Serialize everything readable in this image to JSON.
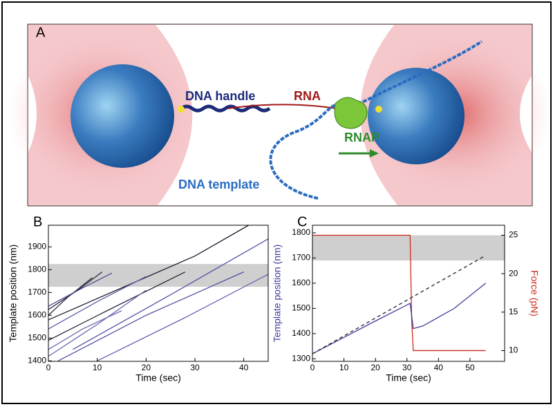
{
  "figure": {
    "panel_a": {
      "label": "A",
      "texts": [
        "DNA handle",
        "RNA",
        "RNAP",
        "DNA template"
      ]
    }
  },
  "chart_data": [
    {
      "type": "line",
      "label": "B",
      "xlabel": "Time (sec)",
      "ylabel": "Template position (nm)",
      "xlim": [
        0,
        45
      ],
      "ylim": [
        1398,
        1995
      ],
      "xticks": [
        0,
        10,
        20,
        30,
        40
      ],
      "yticks": [
        1400,
        1500,
        1600,
        1700,
        1800,
        1900
      ],
      "band": [
        1725,
        1825
      ],
      "series": [
        {
          "color": "#2a2a40",
          "x": [
            0,
            4,
            9
          ],
          "values": [
            1600,
            1680,
            1765
          ]
        },
        {
          "color": "#2a2a40",
          "x": [
            0,
            6,
            11
          ],
          "values": [
            1625,
            1710,
            1790
          ]
        },
        {
          "color": "#4a4a90",
          "x": [
            0,
            7,
            13
          ],
          "values": [
            1640,
            1720,
            1785
          ]
        },
        {
          "color": "#1a1a2a",
          "x": [
            0,
            15,
            30,
            41
          ],
          "values": [
            1580,
            1720,
            1860,
            1995
          ]
        },
        {
          "color": "#2a2a40",
          "x": [
            0,
            12,
            28
          ],
          "values": [
            1490,
            1620,
            1790
          ]
        },
        {
          "color": "#6a6ab0",
          "x": [
            0,
            7,
            15
          ],
          "values": [
            1450,
            1540,
            1620
          ]
        },
        {
          "color": "#5a5aa8",
          "x": [
            0,
            10,
            20
          ],
          "values": [
            1540,
            1660,
            1770
          ]
        },
        {
          "color": "#6a6ab0",
          "x": [
            0,
            10,
            20
          ],
          "values": [
            1420,
            1560,
            1710
          ]
        },
        {
          "color": "#5050a0",
          "x": [
            2,
            20,
            40
          ],
          "values": [
            1400,
            1600,
            1790
          ]
        },
        {
          "color": "#6060b0",
          "x": [
            10,
            28,
            45
          ],
          "values": [
            1400,
            1590,
            1780
          ]
        },
        {
          "color": "#5050a8",
          "x": [
            5,
            25,
            45
          ],
          "values": [
            1450,
            1690,
            1935
          ]
        }
      ]
    },
    {
      "type": "line",
      "label": "C",
      "xlabel": "Time (sec)",
      "ylabel": "Template position (nm)",
      "y2label": "Force (pN)",
      "xlim": [
        0,
        61
      ],
      "ylim": [
        1290,
        1830
      ],
      "xticks": [
        0,
        10,
        20,
        30,
        40,
        50
      ],
      "yticks": [
        1300,
        1400,
        1500,
        1600,
        1700,
        1800
      ],
      "y2lim": [
        8.6,
        26.3
      ],
      "y2ticks": [
        10,
        15,
        20,
        25
      ],
      "band": [
        1690,
        1790
      ],
      "series": [
        {
          "color": "#cc2a1a",
          "axis": "y2",
          "x": [
            0,
            10,
            20,
            31,
            31.5,
            32,
            40,
            50,
            55
          ],
          "values": [
            25,
            25,
            25,
            25,
            14,
            10,
            10,
            10,
            10
          ]
        },
        {
          "color": "#3c3c9a",
          "x": [
            0,
            10,
            20,
            31,
            32,
            35,
            45,
            55
          ],
          "values": [
            1320,
            1385,
            1450,
            1520,
            1420,
            1430,
            1500,
            1600
          ]
        },
        {
          "color": "#222222",
          "dash": true,
          "x": [
            0,
            55
          ],
          "values": [
            1320,
            1710
          ]
        }
      ]
    }
  ]
}
